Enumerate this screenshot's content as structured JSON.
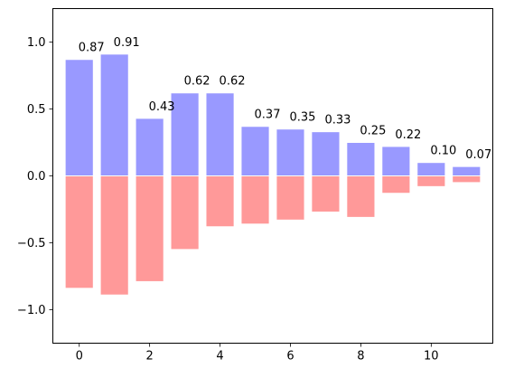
{
  "chart_data": {
    "type": "bar",
    "x": [
      0,
      1,
      2,
      3,
      4,
      5,
      6,
      7,
      8,
      9,
      10,
      11
    ],
    "series": [
      {
        "values": [
          0.87,
          0.91,
          0.43,
          0.62,
          0.62,
          0.37,
          0.35,
          0.33,
          0.25,
          0.22,
          0.1,
          0.07
        ],
        "color": "#9999ff",
        "labels": [
          "0.87",
          "0.91",
          "0.43",
          "0.62",
          "0.62",
          "0.37",
          "0.35",
          "0.33",
          "0.25",
          "0.22",
          "0.10",
          "0.07"
        ]
      },
      {
        "values": [
          -0.84,
          -0.89,
          -0.79,
          -0.55,
          -0.38,
          -0.36,
          -0.33,
          -0.27,
          -0.31,
          -0.13,
          -0.08,
          -0.05
        ],
        "color": "#ff9999"
      }
    ],
    "xlim": [
      -0.75,
      11.75
    ],
    "ylim": [
      -1.25,
      1.25
    ],
    "xticks": [
      0,
      2,
      4,
      6,
      8,
      10
    ],
    "xtick_labels": [
      "0",
      "2",
      "4",
      "6",
      "8",
      "10"
    ],
    "yticks": [
      -1.0,
      -0.5,
      0.0,
      0.5,
      1.0
    ],
    "ytick_labels": [
      "−1.0",
      "−0.5",
      "0.0",
      "0.5",
      "1.0"
    ],
    "title": "",
    "xlabel": "",
    "ylabel": "",
    "grid": false,
    "legend": "none",
    "bar_edgecolor": "#ffffff"
  }
}
